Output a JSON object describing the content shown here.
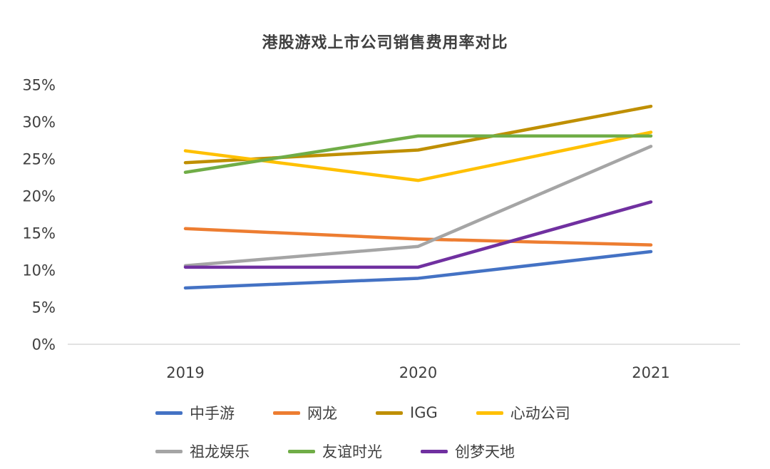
{
  "chart_data": {
    "type": "line",
    "title": "港股游戏上市公司销售费用率对比",
    "categories": [
      "2019",
      "2020",
      "2021"
    ],
    "series": [
      {
        "name": "中手游",
        "color": "#4472C4",
        "values": [
          7.6,
          8.9,
          12.5
        ]
      },
      {
        "name": "网龙",
        "color": "#ED7D31",
        "values": [
          15.6,
          14.2,
          13.4
        ]
      },
      {
        "name": "IGG",
        "color": "#BF8F00",
        "values": [
          24.5,
          26.2,
          32.1
        ]
      },
      {
        "name": "心动公司",
        "color": "#FFC000",
        "values": [
          26.1,
          22.1,
          28.6
        ]
      },
      {
        "name": "祖龙娱乐",
        "color": "#A5A5A5",
        "values": [
          10.6,
          13.2,
          26.7
        ]
      },
      {
        "name": "友谊时光",
        "color": "#70AD47",
        "values": [
          23.2,
          28.1,
          28.1
        ]
      },
      {
        "name": "创梦天地",
        "color": "#7030A0",
        "values": [
          10.4,
          10.4,
          19.2
        ]
      }
    ],
    "ylim": [
      0,
      35
    ],
    "ytick_step": 5,
    "ytick_labels": [
      "0%",
      "5%",
      "10%",
      "15%",
      "20%",
      "25%",
      "30%",
      "35%"
    ],
    "legend_rows": [
      [
        0,
        1,
        2,
        3
      ],
      [
        4,
        5,
        6
      ]
    ],
    "grid": false,
    "legend_position": "bottom",
    "axis_line_color": "#D9D9D9",
    "text_color": "#404040"
  }
}
